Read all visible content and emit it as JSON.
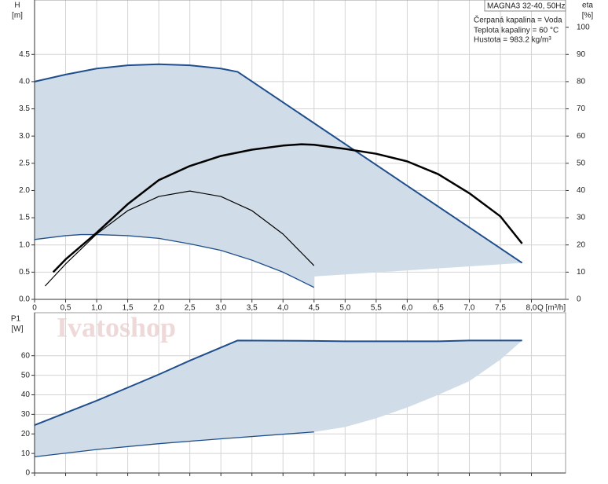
{
  "chart_data": [
    {
      "type": "line",
      "y_label": "H",
      "y_unit": "[m]",
      "y2_label": "eta",
      "y2_unit": "[%]",
      "x_label": "Q [m³/h]",
      "xlim": [
        0,
        8.55
      ],
      "xticks": [
        0,
        {
          "value": 0.5,
          "label": "0,5"
        },
        {
          "value": 1,
          "label": "1,0"
        },
        {
          "value": 1.5,
          "label": "1,5"
        },
        {
          "value": 2,
          "label": "2,0"
        },
        {
          "value": 2.5,
          "label": "2,5"
        },
        {
          "value": 3,
          "label": "3,0"
        },
        {
          "value": 3.5,
          "label": "3,5"
        },
        {
          "value": 4,
          "label": "4,0"
        },
        {
          "value": 4.5,
          "label": "4,5"
        },
        {
          "value": 5,
          "label": "5,0"
        },
        {
          "value": 5.5,
          "label": "5,5"
        },
        {
          "value": 6,
          "label": "6,0"
        },
        {
          "value": 6.5,
          "label": "6,5"
        },
        {
          "value": 7,
          "label": "7,0"
        },
        {
          "value": 7.5,
          "label": "7,5"
        },
        {
          "value": 8,
          "label": "8,0"
        }
      ],
      "ylim": [
        0,
        5.5
      ],
      "yticks": [
        {
          "value": 0,
          "label": "0.0"
        },
        0.5,
        {
          "value": 1,
          "label": "1.0"
        },
        1.5,
        {
          "value": 2,
          "label": "2.0"
        },
        2.5,
        {
          "value": 3,
          "label": "3.0"
        },
        3.5,
        {
          "value": 4,
          "label": "4.0"
        },
        4.5
      ],
      "y2lim": [
        0,
        110
      ],
      "y2ticks": [
        0,
        10,
        20,
        30,
        40,
        50,
        60,
        70,
        80,
        90,
        100
      ],
      "grid": true,
      "series": [
        {
          "color": "#1f4e8c",
          "width": 2,
          "x": [
            0,
            0.5,
            1,
            1.5,
            2,
            2.5,
            3,
            3.27,
            7.85
          ],
          "values": [
            4.0,
            4.13,
            4.24,
            4.3,
            4.32,
            4.3,
            4.24,
            4.18,
            0.67
          ]
        },
        {
          "color": "#1f4e8c",
          "width": 1.3,
          "x": [
            0,
            0.5,
            0.75,
            1,
            1.5,
            2,
            2.5,
            3,
            3.5,
            4,
            4.5
          ],
          "values": [
            1.1,
            1.17,
            1.19,
            1.19,
            1.17,
            1.12,
            1.02,
            0.9,
            0.72,
            0.5,
            0.22
          ]
        },
        {
          "color": "#000000",
          "width": 2.5,
          "axis": "y2",
          "x": [
            0.3,
            0.5,
            1,
            1.5,
            2,
            2.5,
            3,
            3.5,
            4,
            4.3,
            4.5,
            5,
            5.5,
            6,
            6.5,
            7,
            7.5,
            7.85
          ],
          "values": [
            10,
            14.7,
            24.5,
            35,
            43.8,
            49,
            52.7,
            55,
            56.5,
            57,
            56.8,
            55.3,
            53.5,
            50.7,
            46,
            39,
            30.5,
            20.5
          ]
        },
        {
          "color": "#000000",
          "width": 1.2,
          "axis": "y2",
          "x": [
            0.17,
            0.5,
            1,
            1.5,
            2,
            2.5,
            3,
            3.5,
            4,
            4.5
          ],
          "values": [
            4.9,
            13,
            24,
            32.6,
            37.8,
            39.8,
            37.8,
            32.6,
            24,
            12.4
          ]
        }
      ],
      "area": {
        "color": "#d0dce7",
        "x": [
          4.5
        ],
        "values": [
          0.42
        ]
      },
      "info": {
        "title": "MAGNA3 32-40, 50Hz",
        "lines": [
          "Čerpaná kapalina = Voda",
          "Teplota kapaliny = 60 °C",
          "Hustota = 983.2 kg/m³"
        ]
      }
    },
    {
      "type": "line",
      "y_label": "P1",
      "y_unit": "[W]",
      "xlim": [
        0,
        8.55
      ],
      "ylim": [
        0,
        82
      ],
      "yticks": [
        0,
        10,
        20,
        30,
        40,
        50,
        60
      ],
      "grid": true,
      "series": [
        {
          "color": "#1f4e8c",
          "width": 2,
          "x": [
            0,
            1,
            2,
            2.5,
            3.27,
            4.5,
            5,
            6.5,
            7,
            7.85
          ],
          "values": [
            24.5,
            37,
            50.4,
            57.5,
            67.8,
            67.6,
            67.4,
            67.4,
            67.8,
            67.8
          ]
        },
        {
          "color": "#1f4e8c",
          "width": 1.3,
          "x": [
            0,
            1,
            2,
            3,
            4.5
          ],
          "values": [
            8.3,
            12,
            15,
            17.5,
            21
          ]
        }
      ],
      "area": {
        "color": "#d0dce7",
        "x": [
          5,
          5.5,
          6,
          6.5,
          7,
          7.5
        ],
        "values": [
          23.5,
          28,
          33.5,
          40,
          47,
          58
        ]
      },
      "watermark": "Ivatoshop"
    }
  ]
}
